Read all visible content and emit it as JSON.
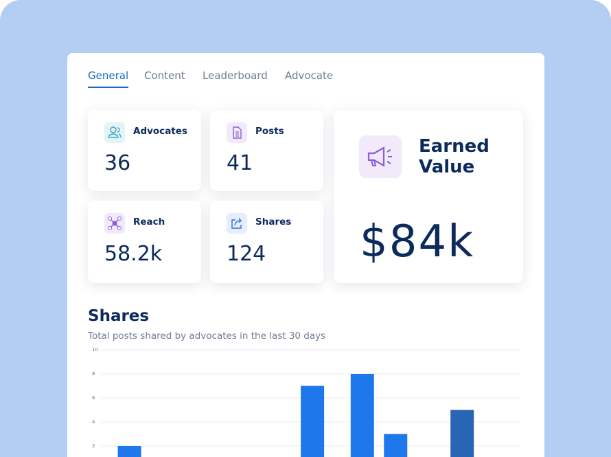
{
  "tabs": [
    "General",
    "Content",
    "Leaderboard",
    "Advocate"
  ],
  "stats": [
    {
      "label": "Advocates",
      "value": "36"
    },
    {
      "label": "Posts",
      "value": "41"
    },
    {
      "label": "Reach",
      "value": "58.2k"
    },
    {
      "label": "Shares",
      "value": "124"
    }
  ],
  "earned": {
    "label": "Earned Value",
    "value": "$84k"
  },
  "chart_data": {
    "type": "bar",
    "title": "Shares",
    "subtitle": "Total posts shared by advocates in the last 30 days",
    "categories": [
      null,
      null,
      null,
      null,
      null,
      null,
      null,
      null,
      null,
      null,
      null,
      null,
      null,
      null,
      null,
      null,
      null,
      null,
      null,
      null,
      null,
      null,
      null,
      null,
      null,
      null
    ],
    "values": [
      0,
      0,
      2,
      0,
      0,
      0,
      0,
      0,
      0,
      0,
      0,
      0,
      0,
      7,
      0,
      0,
      8,
      0,
      3,
      0,
      0,
      0,
      5,
      0,
      0,
      0
    ],
    "colors": [
      "#1f77ec",
      "#1f77ec",
      "#1f77ec",
      "#1f77ec",
      "#1f77ec",
      "#1f77ec",
      "#1f77ec",
      "#1f77ec",
      "#1f77ec",
      "#1f77ec",
      "#1f77ec",
      "#1f77ec",
      "#1f77ec",
      "#1f77ec",
      "#1f77ec",
      "#1f77ec",
      "#1f77ec",
      "#1f77ec",
      "#1f77ec",
      "#1f77ec",
      "#1f77ec",
      "#1f77ec",
      "#2866b3",
      "#1f77ec",
      "#1f77ec",
      "#1f77ec"
    ],
    "ylim": [
      0,
      10
    ],
    "yticks": [
      2,
      4,
      6,
      8,
      10
    ],
    "grid": true
  }
}
